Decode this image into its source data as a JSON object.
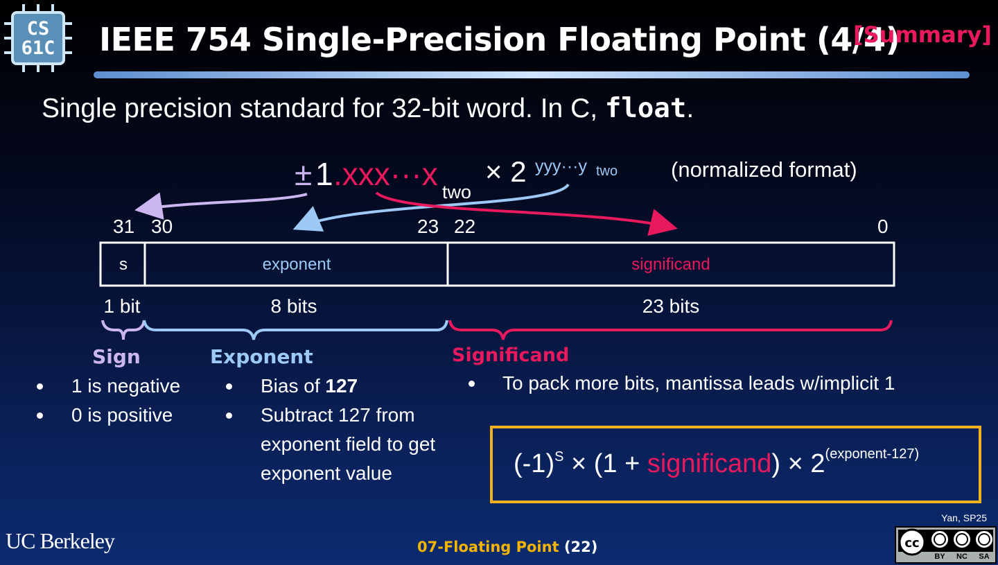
{
  "logo": {
    "line1": "CS",
    "line2": "61C"
  },
  "header": {
    "title": "IEEE 754 Single-Precision Floating Point (4/4)",
    "tag": "[Summary]"
  },
  "intro": {
    "text": "Single precision standard for 32-bit word. In C, ",
    "code": "float",
    "end": "."
  },
  "normalized": {
    "sign": "±",
    "one": "1",
    "fraction": ".xxx···x",
    "fraction_base": "two",
    "times": "× 2",
    "exponent": "yyy···y",
    "exponent_base": "two",
    "note": "(normalized format)"
  },
  "bit_positions": [
    31,
    30,
    23,
    22,
    0
  ],
  "fields": {
    "sign": "s",
    "exponent": "exponent",
    "significand": "significand"
  },
  "sizes": {
    "sign": "1 bit",
    "exponent": "8 bits",
    "significand": "23 bits"
  },
  "sections": {
    "sign": {
      "heading": "Sign",
      "bullets": [
        "1 is negative",
        "0 is positive"
      ]
    },
    "exponent": {
      "heading": "Exponent",
      "bullet1_text": "Bias of ",
      "bullet1_bold": "127",
      "bullet2": "Subtract 127 from exponent field to get exponent value"
    },
    "significand": {
      "heading": "Significand",
      "bullet": "To pack more bits, mantissa leads w/implicit 1"
    }
  },
  "formula": {
    "neg": "(-1)",
    "s": "S",
    "mid": " × (1 + ",
    "significand": "significand",
    "end": ") × 2",
    "power": "(exponent-127)"
  },
  "footer": {
    "institution": "UC Berkeley",
    "lecture": "07-Floating Point",
    "slide": "(22)",
    "author": "Yan, SP25",
    "license": [
      "BY",
      "NC",
      "SA"
    ]
  }
}
